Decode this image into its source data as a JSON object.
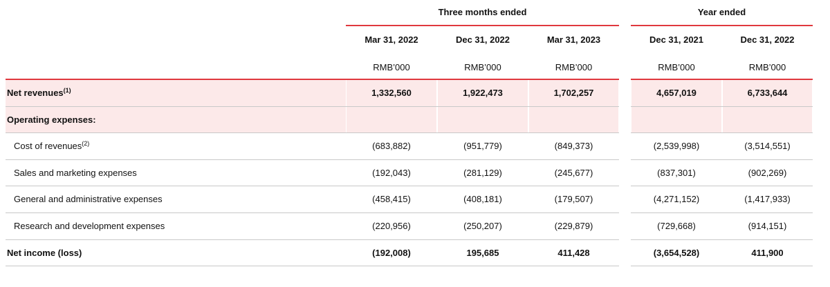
{
  "column_groups": [
    {
      "label": "Three months ended",
      "span": [
        0,
        2
      ]
    },
    {
      "label": "Year ended",
      "span": [
        3,
        4
      ]
    }
  ],
  "columns": [
    {
      "date": "Mar 31, 2022",
      "unit": "RMB’000"
    },
    {
      "date": "Dec 31, 2022",
      "unit": "RMB’000"
    },
    {
      "date": "Mar 31, 2023",
      "unit": "RMB’000"
    },
    {
      "date": "Dec 31, 2021",
      "unit": "RMB’000"
    },
    {
      "date": "Dec 31, 2022",
      "unit": "RMB’000"
    }
  ],
  "rows": [
    {
      "label": "Net revenues",
      "note": "(1)",
      "bold": true,
      "shaded": true,
      "values": [
        "1,332,560",
        "1,922,473",
        "1,702,257",
        "4,657,019",
        "6,733,644"
      ]
    },
    {
      "label": "Operating expenses:",
      "bold": true,
      "shaded": true
    },
    {
      "label": "Cost of revenues",
      "note": "(2)",
      "indent": true,
      "values": [
        "(683,882)",
        "(951,779)",
        "(849,373)",
        "(2,539,998)",
        "(3,514,551)"
      ]
    },
    {
      "label": "Sales and marketing expenses",
      "indent": true,
      "values": [
        "(192,043)",
        "(281,129)",
        "(245,677)",
        "(837,301)",
        "(902,269)"
      ]
    },
    {
      "label": "General and administrative expenses",
      "indent": true,
      "values": [
        "(458,415)",
        "(408,181)",
        "(179,507)",
        "(4,271,152)",
        "(1,417,933)"
      ]
    },
    {
      "label": "Research and development expenses",
      "indent": true,
      "values": [
        "(220,956)",
        "(250,207)",
        "(229,879)",
        "(729,668)",
        "(914,151)"
      ]
    },
    {
      "label": "Net income (loss)",
      "bold": true,
      "values": [
        "(192,008)",
        "195,685",
        "411,428",
        "(3,654,528)",
        "411,900"
      ]
    }
  ]
}
